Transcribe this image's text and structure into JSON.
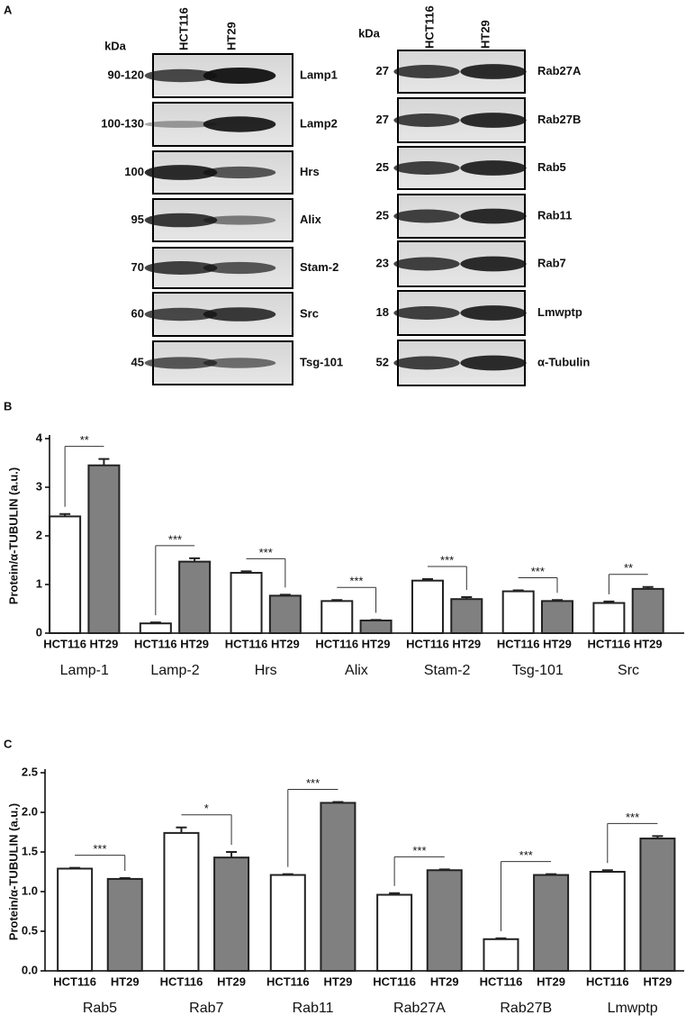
{
  "panel_a": {
    "label": "A",
    "left": {
      "kda_label": "kDa",
      "lanes": [
        "HCT116",
        "HT29"
      ],
      "rows": [
        {
          "kda": "90-120",
          "protein": "Lamp1"
        },
        {
          "kda": "100-130",
          "protein": "Lamp2"
        },
        {
          "kda": "100",
          "protein": "Hrs"
        },
        {
          "kda": "95",
          "protein": "Alix"
        },
        {
          "kda": "70",
          "protein": "Stam-2"
        },
        {
          "kda": "60",
          "protein": "Src"
        },
        {
          "kda": "45",
          "protein": "Tsg-101"
        }
      ]
    },
    "right": {
      "kda_label": "kDa",
      "lanes": [
        "HCT116",
        "HT29"
      ],
      "rows": [
        {
          "kda": "27",
          "protein": "Rab27A"
        },
        {
          "kda": "27",
          "protein": "Rab27B"
        },
        {
          "kda": "25",
          "protein": "Rab5"
        },
        {
          "kda": "25",
          "protein": "Rab11"
        },
        {
          "kda": "23",
          "protein": "Rab7"
        },
        {
          "kda": "18",
          "protein": "Lmwptp"
        },
        {
          "kda": "52",
          "protein": "α-Tubulin"
        }
      ]
    }
  },
  "chart_data": [
    {
      "type": "bar",
      "panel_label": "B",
      "ylabel": "Protein/α-TUBULIN (a.u.)",
      "categories": [
        "Lamp-1",
        "Lamp-2",
        "Hrs",
        "Alix",
        "Stam-2",
        "Tsg-101",
        "Src"
      ],
      "series": [
        {
          "name": "HCT116",
          "color": "#ffffff",
          "values": [
            2.4,
            0.2,
            1.24,
            0.66,
            1.08,
            0.86,
            0.62
          ],
          "errors": [
            0.05,
            0.02,
            0.03,
            0.02,
            0.03,
            0.02,
            0.03
          ]
        },
        {
          "name": "HT29",
          "color": "#808080",
          "values": [
            3.45,
            1.47,
            0.77,
            0.26,
            0.7,
            0.66,
            0.91
          ],
          "errors": [
            0.13,
            0.07,
            0.02,
            0.01,
            0.04,
            0.02,
            0.04
          ]
        }
      ],
      "significance": [
        "**",
        "***",
        "***",
        "***",
        "***",
        "***",
        "**"
      ],
      "ylim": [
        0,
        4
      ],
      "yticks": [
        0,
        1,
        2,
        3,
        4
      ]
    },
    {
      "type": "bar",
      "panel_label": "C",
      "ylabel": "Protein/α-TUBULIN (a.u.)",
      "categories": [
        "Rab5",
        "Rab7",
        "Rab11",
        "Rab27A",
        "Rab27B",
        "Lmwptp"
      ],
      "series": [
        {
          "name": "HCT116",
          "color": "#ffffff",
          "values": [
            1.29,
            1.74,
            1.21,
            0.96,
            0.4,
            1.25
          ],
          "errors": [
            0.01,
            0.07,
            0.01,
            0.02,
            0.01,
            0.02
          ]
        },
        {
          "name": "HT29",
          "color": "#808080",
          "values": [
            1.16,
            1.43,
            2.12,
            1.27,
            1.21,
            1.67
          ],
          "errors": [
            0.01,
            0.07,
            0.01,
            0.01,
            0.01,
            0.03
          ]
        }
      ],
      "significance": [
        "***",
        "*",
        "***",
        "***",
        "***",
        "***"
      ],
      "ylim": [
        0,
        2.5
      ],
      "yticks": [
        {
          "value": 0,
          "label": "0.0"
        },
        0.5,
        {
          "value": 1,
          "label": "1.0"
        },
        1.5,
        {
          "value": 2,
          "label": "2.0"
        },
        2.5
      ]
    }
  ]
}
